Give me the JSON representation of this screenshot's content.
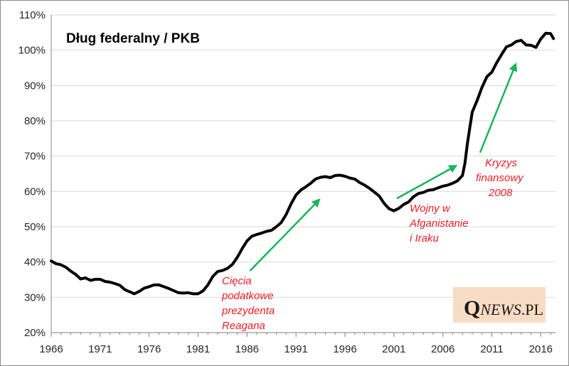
{
  "chart_data": {
    "type": "line",
    "title": "Dług federalny / PKB",
    "xlabel": "",
    "ylabel": "",
    "xlim": [
      1966,
      2017.5
    ],
    "ylim": [
      20,
      110
    ],
    "x_ticks": [
      "1966",
      "1971",
      "1976",
      "1981",
      "1986",
      "1991",
      "1996",
      "2001",
      "2006",
      "2011",
      "2016"
    ],
    "y_ticks": [
      "20%",
      "30%",
      "40%",
      "50%",
      "60%",
      "70%",
      "80%",
      "90%",
      "100%",
      "110%"
    ],
    "grid": "horizontal",
    "series": [
      {
        "name": "Dług federalny / PKB",
        "x": [
          1966,
          1966.5,
          1967,
          1967.5,
          1968,
          1968.5,
          1969,
          1969.5,
          1970,
          1970.5,
          1971,
          1971.5,
          1972,
          1972.5,
          1973,
          1973.5,
          1974,
          1974.5,
          1975,
          1975.5,
          1976,
          1976.5,
          1977,
          1977.5,
          1978,
          1978.5,
          1979,
          1979.5,
          1980,
          1980.5,
          1981,
          1981.5,
          1982,
          1982.5,
          1983,
          1983.5,
          1984,
          1984.5,
          1985,
          1985.5,
          1986,
          1986.5,
          1987,
          1987.5,
          1988,
          1988.5,
          1989,
          1989.5,
          1990,
          1990.5,
          1991,
          1991.5,
          1992,
          1992.5,
          1993,
          1993.5,
          1994,
          1994.5,
          1995,
          1995.5,
          1996,
          1996.5,
          1997,
          1997.5,
          1998,
          1998.5,
          1999,
          1999.5,
          2000,
          2000.5,
          2001,
          2001.5,
          2002,
          2002.5,
          2003,
          2003.5,
          2004,
          2004.5,
          2005,
          2005.5,
          2006,
          2006.5,
          2007,
          2007.5,
          2008,
          2008.25,
          2008.5,
          2008.75,
          2009,
          2009.5,
          2010,
          2010.5,
          2011,
          2011.5,
          2012,
          2012.5,
          2013,
          2013.5,
          2014,
          2014.5,
          2015,
          2015.5,
          2016,
          2016.5,
          2017,
          2017.3
        ],
        "values": [
          40.3,
          39.5,
          39.2,
          38.5,
          37.4,
          36.5,
          35.2,
          35.5,
          34.8,
          35.1,
          35.1,
          34.5,
          34.3,
          33.9,
          33.4,
          32.2,
          31.6,
          31.0,
          31.7,
          32.6,
          33.0,
          33.5,
          33.5,
          33.0,
          32.5,
          31.9,
          31.3,
          31.2,
          31.3,
          31.0,
          31.0,
          31.8,
          33.5,
          35.9,
          37.3,
          37.6,
          38.2,
          39.3,
          41.3,
          43.8,
          46.0,
          47.3,
          47.8,
          48.2,
          48.7,
          49.0,
          50.0,
          51.2,
          53.5,
          56.5,
          59.0,
          60.4,
          61.3,
          62.3,
          63.5,
          64.0,
          64.2,
          63.9,
          64.5,
          64.6,
          64.3,
          63.8,
          63.5,
          62.5,
          61.8,
          60.9,
          59.8,
          58.7,
          56.6,
          55.1,
          54.5,
          55.2,
          56.3,
          57.0,
          58.5,
          59.4,
          59.7,
          60.3,
          60.5,
          61.0,
          61.5,
          61.8,
          62.3,
          63.0,
          64.5,
          68.0,
          73.5,
          78.0,
          82.5,
          85.8,
          89.5,
          92.5,
          93.8,
          96.5,
          98.8,
          101.0,
          101.5,
          102.5,
          102.8,
          101.5,
          101.4,
          100.8,
          103.2,
          104.8,
          104.7,
          103.3
        ],
        "color": "#000000"
      }
    ],
    "annotations": [
      {
        "lines": [
          "Cięcia",
          "podatkowe",
          "prezydenta",
          "Reagana"
        ],
        "color": "#ee1c25"
      },
      {
        "lines": [
          "Wojny w",
          "Afganistanie",
          "i Iraku"
        ],
        "color": "#ee1c25"
      },
      {
        "lines": [
          "Kryzys",
          "finansowy",
          "2008"
        ],
        "color": "#ee1c25"
      }
    ],
    "arrow_color": "#18b45a"
  },
  "watermark": {
    "q": "Q",
    "news": "NEWS",
    "dot_pl": ".PL",
    "bg_color": "#f9dcc4"
  }
}
